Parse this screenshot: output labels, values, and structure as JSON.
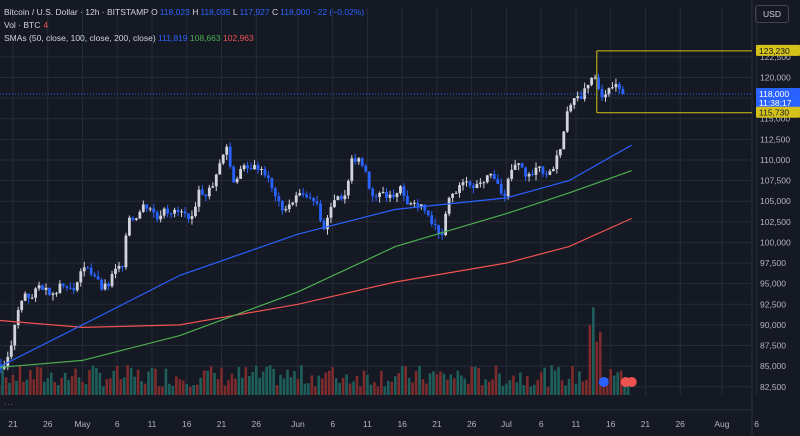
{
  "header": {
    "symbol": "Bitcoin / U.S. Dollar · 12h · BITSTAMP",
    "open_label": "O",
    "open": "118,023",
    "high_label": "H",
    "high": "118,035",
    "low_label": "L",
    "low": "117,927",
    "close_label": "C",
    "close": "118,000",
    "change": "−22 (−0.02%)",
    "vol_label": "Vol · BTC",
    "vol_value": "4",
    "sma_label": "SMAs (50, close, 100, close, 200, close)",
    "sma50": "111,819",
    "sma100": "108,663",
    "sma200": "102,963",
    "currency": "USD",
    "more_dots": "..."
  },
  "colors": {
    "background": "#151924",
    "grid": "#262b38",
    "up": "#d1d4dc",
    "down": "#2962ff",
    "sma50": "#2962ff",
    "sma100": "#4caf50",
    "sma200": "#ef5350",
    "vol_up": "#1f5f5b",
    "vol_down": "#7d2b2b",
    "range_box": "#d4c21a"
  },
  "chart_data": {
    "type": "candlestick",
    "x_tick_labels": [
      "21",
      "26",
      "May",
      "6",
      "11",
      "16",
      "21",
      "26",
      "Jun",
      "6",
      "11",
      "16",
      "21",
      "26",
      "Jul",
      "6",
      "11",
      "16",
      "21",
      "26",
      "Aug",
      "6"
    ],
    "y_tick_labels": [
      "122,500",
      "120,000",
      "117,500",
      "115,000",
      "112,500",
      "110,000",
      "107,500",
      "105,000",
      "102,500",
      "100,000",
      "97,500",
      "95,000",
      "92,500",
      "90,000",
      "87,500",
      "85,000",
      "82,500"
    ],
    "ylim": [
      81500,
      126000
    ],
    "price_labels": [
      {
        "value": 123230,
        "text": "123,230",
        "style": "range"
      },
      {
        "value": 118000,
        "text": "118,000",
        "sub": "11:38:17",
        "style": "current"
      },
      {
        "value": 115730,
        "text": "115,730",
        "style": "range"
      }
    ],
    "range_box": {
      "from": "2025-07-14",
      "high": 123230,
      "low": 115730
    },
    "candles_close_path": [
      [
        "2025-04-14",
        84500
      ],
      [
        "2025-04-15",
        84800
      ],
      [
        "2025-04-16",
        84200
      ],
      [
        "2025-04-17",
        85000
      ],
      [
        "2025-04-18",
        84800
      ],
      [
        "2025-04-19",
        85200
      ],
      [
        "2025-04-20",
        85000
      ],
      [
        "2025-04-21",
        87500
      ],
      [
        "2025-04-22",
        91800
      ],
      [
        "2025-04-23",
        93800
      ],
      [
        "2025-04-24",
        93300
      ],
      [
        "2025-04-25",
        94800
      ],
      [
        "2025-04-26",
        94500
      ],
      [
        "2025-04-27",
        93800
      ],
      [
        "2025-04-28",
        95000
      ],
      [
        "2025-04-29",
        94500
      ],
      [
        "2025-04-30",
        94200
      ],
      [
        "2025-05-01",
        96500
      ],
      [
        "2025-05-02",
        96900
      ],
      [
        "2025-05-03",
        95900
      ],
      [
        "2025-05-04",
        94300
      ],
      [
        "2025-05-05",
        94700
      ],
      [
        "2025-05-06",
        96800
      ],
      [
        "2025-05-07",
        97000
      ],
      [
        "2025-05-08",
        103000
      ],
      [
        "2025-05-09",
        102900
      ],
      [
        "2025-05-10",
        104600
      ],
      [
        "2025-05-11",
        104100
      ],
      [
        "2025-05-12",
        102800
      ],
      [
        "2025-05-13",
        104100
      ],
      [
        "2025-05-14",
        103500
      ],
      [
        "2025-05-15",
        103700
      ],
      [
        "2025-05-16",
        103500
      ],
      [
        "2025-05-17",
        103200
      ],
      [
        "2025-05-18",
        106400
      ],
      [
        "2025-05-19",
        105600
      ],
      [
        "2025-05-20",
        106800
      ],
      [
        "2025-05-21",
        109600
      ],
      [
        "2025-05-22",
        111600
      ],
      [
        "2025-05-23",
        107300
      ],
      [
        "2025-05-24",
        108900
      ],
      [
        "2025-05-25",
        109000
      ],
      [
        "2025-05-26",
        109400
      ],
      [
        "2025-05-27",
        108900
      ],
      [
        "2025-05-28",
        107800
      ],
      [
        "2025-05-29",
        105600
      ],
      [
        "2025-05-30",
        103900
      ],
      [
        "2025-05-31",
        104600
      ],
      [
        "2025-06-01",
        105700
      ],
      [
        "2025-06-02",
        105800
      ],
      [
        "2025-06-03",
        105400
      ],
      [
        "2025-06-04",
        104700
      ],
      [
        "2025-06-05",
        101600
      ],
      [
        "2025-06-06",
        104300
      ],
      [
        "2025-06-07",
        105600
      ],
      [
        "2025-06-08",
        105700
      ],
      [
        "2025-06-09",
        110200
      ],
      [
        "2025-06-10",
        110200
      ],
      [
        "2025-06-11",
        108600
      ],
      [
        "2025-06-12",
        105600
      ],
      [
        "2025-06-13",
        106000
      ],
      [
        "2025-06-14",
        105400
      ],
      [
        "2025-06-15",
        105500
      ],
      [
        "2025-06-16",
        106800
      ],
      [
        "2025-06-17",
        104600
      ],
      [
        "2025-06-18",
        104800
      ],
      [
        "2025-06-19",
        104600
      ],
      [
        "2025-06-20",
        103300
      ],
      [
        "2025-06-21",
        102100
      ],
      [
        "2025-06-22",
        100900
      ],
      [
        "2025-06-23",
        105400
      ],
      [
        "2025-06-24",
        106000
      ],
      [
        "2025-06-25",
        107300
      ],
      [
        "2025-06-26",
        106900
      ],
      [
        "2025-06-27",
        107100
      ],
      [
        "2025-06-28",
        107300
      ],
      [
        "2025-06-29",
        108300
      ],
      [
        "2025-06-30",
        107100
      ],
      [
        "2025-07-01",
        105600
      ],
      [
        "2025-07-02",
        108800
      ],
      [
        "2025-07-03",
        109600
      ],
      [
        "2025-07-04",
        108000
      ],
      [
        "2025-07-05",
        108200
      ],
      [
        "2025-07-06",
        109200
      ],
      [
        "2025-07-07",
        108200
      ],
      [
        "2025-07-08",
        108900
      ],
      [
        "2025-07-09",
        111300
      ],
      [
        "2025-07-10",
        115900
      ],
      [
        "2025-07-11",
        117500
      ],
      [
        "2025-07-12",
        117400
      ],
      [
        "2025-07-13",
        119100
      ],
      [
        "2025-07-14",
        120000
      ],
      [
        "2025-07-15",
        117600
      ],
      [
        "2025-07-16",
        118700
      ],
      [
        "2025-07-17",
        119200
      ],
      [
        "2025-07-18",
        118000
      ]
    ],
    "sma50_path": [
      [
        "2025-04-14",
        82800
      ],
      [
        "2025-05-01",
        90000
      ],
      [
        "2025-05-15",
        96000
      ],
      [
        "2025-06-01",
        101000
      ],
      [
        "2025-06-15",
        104000
      ],
      [
        "2025-07-01",
        105400
      ],
      [
        "2025-07-10",
        107500
      ],
      [
        "2025-07-19",
        111800
      ]
    ],
    "sma100_path": [
      [
        "2025-04-14",
        84500
      ],
      [
        "2025-05-01",
        85700
      ],
      [
        "2025-05-15",
        88700
      ],
      [
        "2025-06-01",
        94000
      ],
      [
        "2025-06-15",
        99500
      ],
      [
        "2025-07-01",
        103500
      ],
      [
        "2025-07-10",
        106000
      ],
      [
        "2025-07-19",
        108700
      ]
    ],
    "sma200_path": [
      [
        "2025-04-14",
        90900
      ],
      [
        "2025-05-01",
        89700
      ],
      [
        "2025-05-15",
        90000
      ],
      [
        "2025-06-01",
        92500
      ],
      [
        "2025-06-15",
        95200
      ],
      [
        "2025-07-01",
        97500
      ],
      [
        "2025-07-10",
        99500
      ],
      [
        "2025-07-19",
        102900
      ]
    ]
  }
}
